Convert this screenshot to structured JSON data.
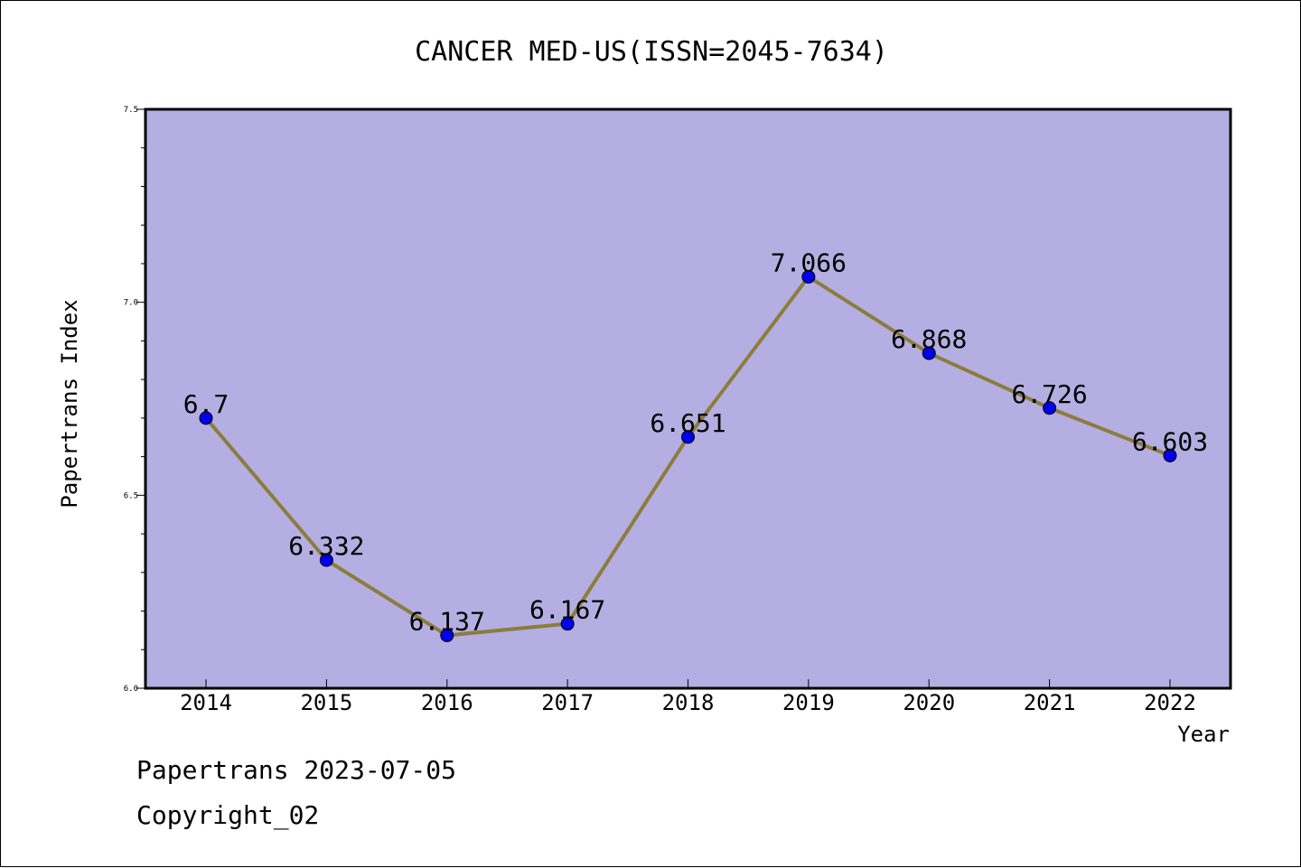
{
  "chart_data": {
    "type": "line",
    "title": "CANCER MED-US(ISSN=2045-7634)",
    "xlabel": "Year",
    "ylabel": "Papertrans Index",
    "categories": [
      "2014",
      "2015",
      "2016",
      "2017",
      "2018",
      "2019",
      "2020",
      "2021",
      "2022"
    ],
    "series": [
      {
        "values": [
          6.7,
          6.332,
          6.137,
          6.167,
          6.651,
          7.066,
          6.868,
          6.726,
          6.603
        ],
        "labels": [
          "6.7",
          "6.332",
          "6.137",
          "6.167",
          "6.651",
          "7.066",
          "6.868",
          "6.726",
          "6.603"
        ]
      }
    ],
    "ylim": [
      6.0,
      7.5
    ],
    "yticks": [
      "6.0",
      "6.5",
      "7.0",
      "7.5"
    ],
    "grid": false,
    "colors": {
      "plot_background": "#b5aee2",
      "line": "#8b7d3a",
      "marker": "#0000ee"
    }
  },
  "footer": {
    "date_line": "Papertrans 2023-07-05",
    "copyright_line": "Copyright_02"
  }
}
